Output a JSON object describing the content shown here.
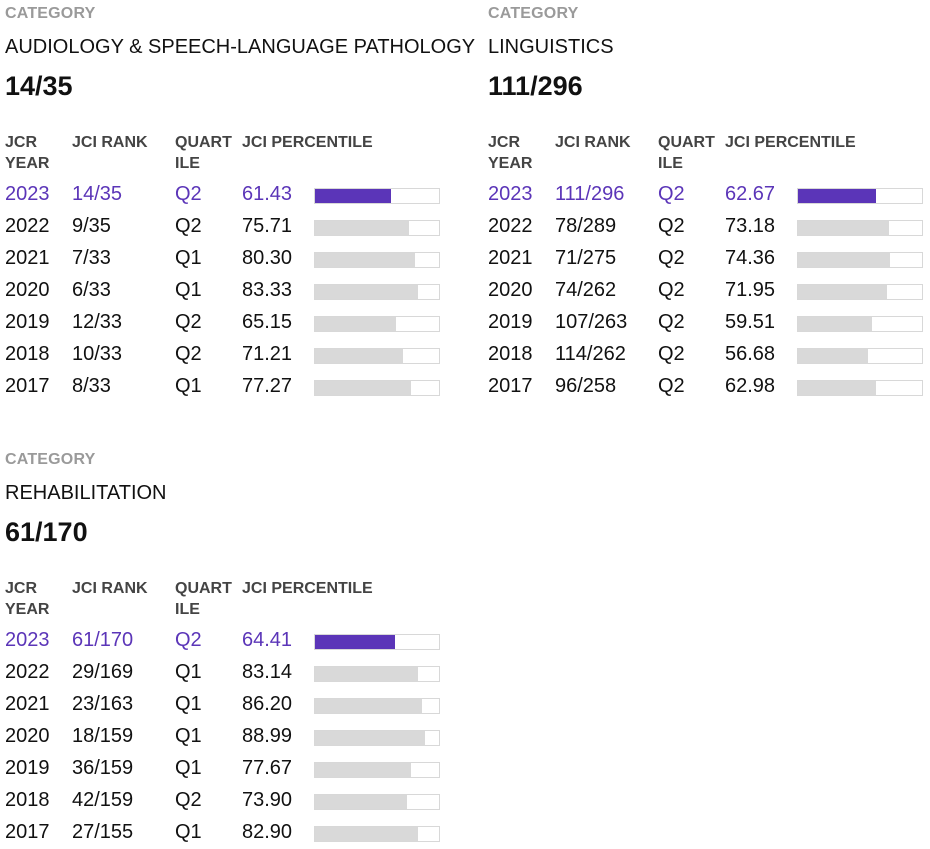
{
  "category_label": "CATEGORY",
  "headers": {
    "year": "JCR YEAR",
    "rank": "JCI RANK",
    "quartile": "QUART ILE",
    "percentile": "JCI PERCENTILE"
  },
  "colors": {
    "accent": "#5b35b8",
    "bar_fill": "#d9d9d9",
    "label_gray": "#9a9a9a"
  },
  "categories": [
    {
      "name": "AUDIOLOGY & SPEECH-LANGUAGE PATHOLOGY",
      "rank": "14/35",
      "rows": [
        {
          "year": "2023",
          "rank": "14/35",
          "quartile": "Q2",
          "percentile": "61.43"
        },
        {
          "year": "2022",
          "rank": "9/35",
          "quartile": "Q2",
          "percentile": "75.71"
        },
        {
          "year": "2021",
          "rank": "7/33",
          "quartile": "Q1",
          "percentile": "80.30"
        },
        {
          "year": "2020",
          "rank": "6/33",
          "quartile": "Q1",
          "percentile": "83.33"
        },
        {
          "year": "2019",
          "rank": "12/33",
          "quartile": "Q2",
          "percentile": "65.15"
        },
        {
          "year": "2018",
          "rank": "10/33",
          "quartile": "Q2",
          "percentile": "71.21"
        },
        {
          "year": "2017",
          "rank": "8/33",
          "quartile": "Q1",
          "percentile": "77.27"
        }
      ]
    },
    {
      "name": "LINGUISTICS",
      "rank": "111/296",
      "rows": [
        {
          "year": "2023",
          "rank": "111/296",
          "quartile": "Q2",
          "percentile": "62.67"
        },
        {
          "year": "2022",
          "rank": "78/289",
          "quartile": "Q2",
          "percentile": "73.18"
        },
        {
          "year": "2021",
          "rank": "71/275",
          "quartile": "Q2",
          "percentile": "74.36"
        },
        {
          "year": "2020",
          "rank": "74/262",
          "quartile": "Q2",
          "percentile": "71.95"
        },
        {
          "year": "2019",
          "rank": "107/263",
          "quartile": "Q2",
          "percentile": "59.51"
        },
        {
          "year": "2018",
          "rank": "114/262",
          "quartile": "Q2",
          "percentile": "56.68"
        },
        {
          "year": "2017",
          "rank": "96/258",
          "quartile": "Q2",
          "percentile": "62.98"
        }
      ]
    },
    {
      "name": "REHABILITATION",
      "rank": "61/170",
      "rows": [
        {
          "year": "2023",
          "rank": "61/170",
          "quartile": "Q2",
          "percentile": "64.41"
        },
        {
          "year": "2022",
          "rank": "29/169",
          "quartile": "Q1",
          "percentile": "83.14"
        },
        {
          "year": "2021",
          "rank": "23/163",
          "quartile": "Q1",
          "percentile": "86.20"
        },
        {
          "year": "2020",
          "rank": "18/159",
          "quartile": "Q1",
          "percentile": "88.99"
        },
        {
          "year": "2019",
          "rank": "36/159",
          "quartile": "Q1",
          "percentile": "77.67"
        },
        {
          "year": "2018",
          "rank": "42/159",
          "quartile": "Q2",
          "percentile": "73.90"
        },
        {
          "year": "2017",
          "rank": "27/155",
          "quartile": "Q1",
          "percentile": "82.90"
        }
      ]
    }
  ]
}
